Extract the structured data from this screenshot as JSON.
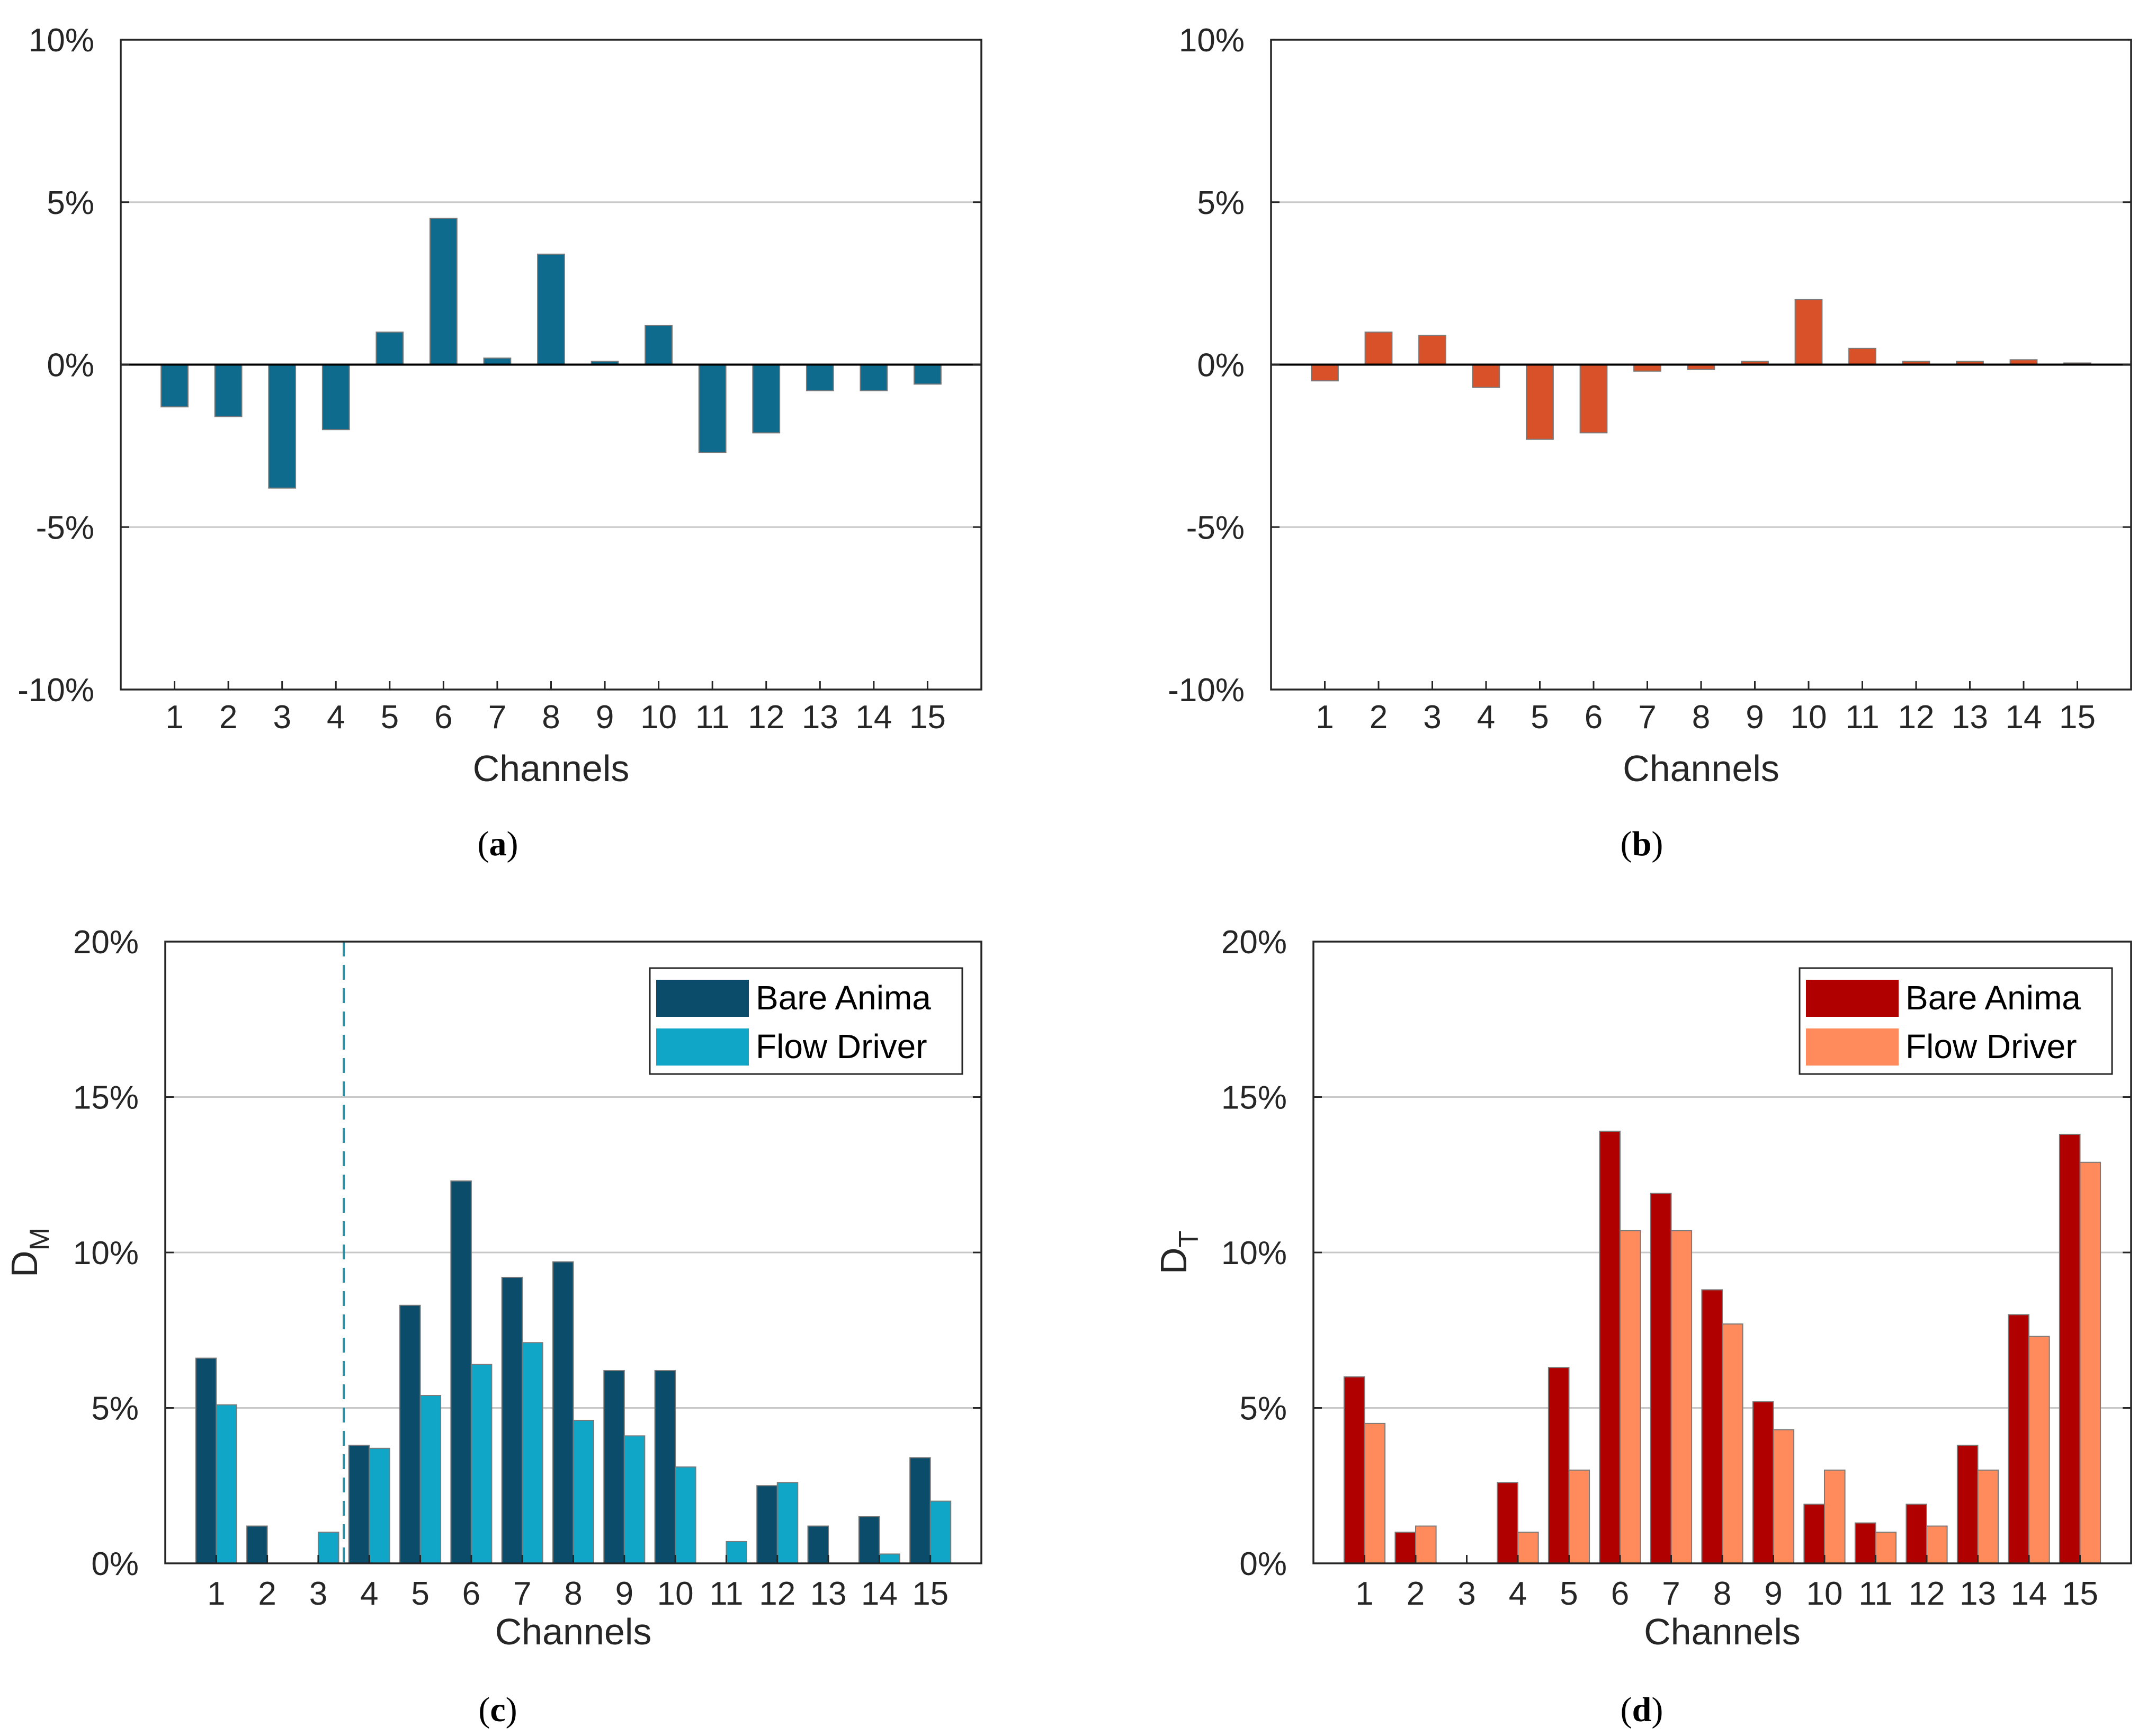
{
  "chart_data": [
    {
      "id": "a",
      "type": "bar",
      "subcaption": "a",
      "xlabel": "Channels",
      "ylabel": "",
      "ylim": [
        -10,
        10
      ],
      "yticks": [
        -10,
        -5,
        0,
        5,
        10
      ],
      "ytick_labels": [
        "-10%",
        "-5%",
        "0%",
        "5%",
        "10%"
      ],
      "grid": true,
      "categories": [
        "1",
        "2",
        "3",
        "4",
        "5",
        "6",
        "7",
        "8",
        "9",
        "10",
        "11",
        "12",
        "13",
        "14",
        "15"
      ],
      "series": [
        {
          "name": "",
          "color": "#0E6B8E",
          "values": [
            -1.3,
            -1.6,
            -3.8,
            -2.0,
            1.0,
            4.5,
            0.2,
            3.4,
            0.1,
            1.2,
            -2.7,
            -2.1,
            -0.8,
            -0.8,
            -0.6
          ]
        }
      ]
    },
    {
      "id": "b",
      "type": "bar",
      "subcaption": "b",
      "xlabel": "Channels",
      "ylabel": "",
      "ylim": [
        -10,
        10
      ],
      "yticks": [
        -10,
        -5,
        0,
        5,
        10
      ],
      "ytick_labels": [
        "-10%",
        "-5%",
        "0%",
        "5%",
        "10%"
      ],
      "grid": true,
      "categories": [
        "1",
        "2",
        "3",
        "4",
        "5",
        "6",
        "7",
        "8",
        "9",
        "10",
        "11",
        "12",
        "13",
        "14",
        "15"
      ],
      "series": [
        {
          "name": "",
          "color": "#D95128",
          "values": [
            -0.5,
            1.0,
            0.9,
            -0.7,
            -2.3,
            -2.1,
            -0.2,
            -0.15,
            0.1,
            2.0,
            0.5,
            0.1,
            0.1,
            0.15,
            0.05
          ]
        }
      ]
    },
    {
      "id": "c",
      "type": "bar",
      "subcaption": "c",
      "xlabel": "Channels",
      "ylabel": "D",
      "ylabel_sub": "M",
      "ylim": [
        0,
        20
      ],
      "yticks": [
        0,
        5,
        10,
        15,
        20
      ],
      "ytick_labels": [
        "0%",
        "5%",
        "10%",
        "15%",
        "20%"
      ],
      "grid": true,
      "legend": "top-right",
      "divider_after": 3.5,
      "categories": [
        "1",
        "2",
        "3",
        "4",
        "5",
        "6",
        "7",
        "8",
        "9",
        "10",
        "11",
        "12",
        "13",
        "14",
        "15"
      ],
      "series": [
        {
          "name": "Bare Anima",
          "color": "#0B4C6A",
          "values": [
            6.6,
            1.2,
            0,
            3.8,
            8.3,
            12.3,
            9.2,
            9.7,
            6.2,
            6.2,
            0,
            2.5,
            1.2,
            1.5,
            3.4
          ]
        },
        {
          "name": "Flow Driver",
          "color": "#0FA6C7",
          "values": [
            5.1,
            0,
            1.0,
            3.7,
            5.4,
            6.4,
            7.1,
            4.6,
            4.1,
            3.1,
            0.7,
            2.6,
            0,
            0.3,
            2.0
          ]
        }
      ]
    },
    {
      "id": "d",
      "type": "bar",
      "subcaption": "d",
      "xlabel": "Channels",
      "ylabel": "D",
      "ylabel_sub": "T",
      "ylim": [
        0,
        20
      ],
      "yticks": [
        0,
        5,
        10,
        15,
        20
      ],
      "ytick_labels": [
        "0%",
        "5%",
        "10%",
        "15%",
        "20%"
      ],
      "grid": true,
      "legend": "top-right",
      "categories": [
        "1",
        "2",
        "3",
        "4",
        "5",
        "6",
        "7",
        "8",
        "9",
        "10",
        "11",
        "12",
        "13",
        "14",
        "15"
      ],
      "series": [
        {
          "name": "Bare Anima",
          "color": "#B00000",
          "values": [
            6.0,
            1.0,
            0,
            2.6,
            6.3,
            13.9,
            11.9,
            8.8,
            5.2,
            1.9,
            1.3,
            1.9,
            3.8,
            8.0,
            13.8
          ]
        },
        {
          "name": "Flow Driver",
          "color": "#FF8A5C",
          "values": [
            4.5,
            1.2,
            0,
            1.0,
            3.0,
            10.7,
            10.7,
            7.7,
            4.3,
            3.0,
            1.0,
            1.2,
            3.0,
            7.3,
            12.9
          ]
        }
      ]
    }
  ]
}
